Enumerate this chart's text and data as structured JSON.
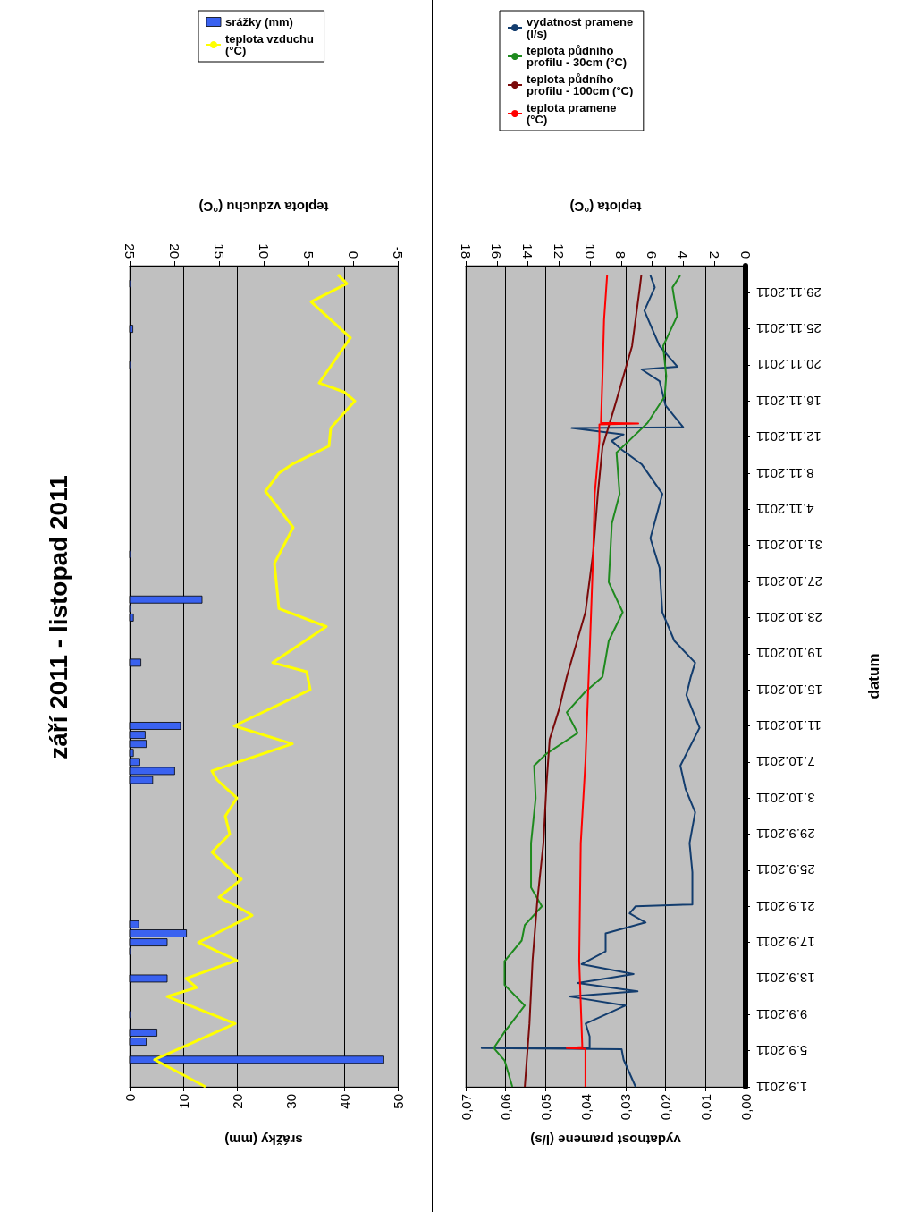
{
  "chart_data": [
    {
      "type": "bar",
      "orientation": "horizontal",
      "title": "září 2011 - listopad 2011",
      "xlabel": "srážky (mm)",
      "x2label": "teplota vzduchu (°C)",
      "ylim": [
        "2011-09-01",
        "2011-12-01"
      ],
      "xlim": [
        0,
        50
      ],
      "xticks": [
        0,
        10,
        20,
        30,
        40,
        50
      ],
      "x2lim": [
        25,
        -5
      ],
      "x2ticks": [
        -5,
        0,
        5,
        10,
        15,
        20,
        25
      ],
      "grid": "x",
      "legend": "top",
      "tick_labels": "x",
      "marker": "none",
      "series": [
        {
          "name": "srážky (mm)",
          "color": "#3a62f0",
          "x": [
            "2011-09-04",
            "2011-09-06",
            "2011-09-07",
            "2011-09-09",
            "2011-09-13",
            "2011-09-16",
            "2011-09-17",
            "2011-09-18",
            "2011-09-19",
            "2011-10-05",
            "2011-10-06",
            "2011-10-07",
            "2011-10-08",
            "2011-10-09",
            "2011-10-10",
            "2011-10-11",
            "2011-10-18",
            "2011-10-23",
            "2011-10-24",
            "2011-10-25",
            "2011-10-30",
            "2011-11-20",
            "2011-11-24",
            "2011-11-29"
          ],
          "values": [
            47.4,
            3.1,
            5.1,
            0.2,
            7.0,
            0.2,
            7.0,
            10.6,
            1.7,
            4.3,
            8.4,
            1.9,
            0.7,
            3.1,
            2.9,
            9.5,
            2.1,
            0.7,
            0.2,
            13.5,
            0.2,
            0.2,
            0.6,
            0.2
          ]
        },
        {
          "name": "teplota vzduchu (°C)",
          "type": "line",
          "axis": "x2",
          "color": "#ffff00",
          "x": [
            "2011-09-01",
            "2011-09-04",
            "2011-09-08",
            "2011-09-11",
            "2011-09-12",
            "2011-09-13",
            "2011-09-15",
            "2011-09-17",
            "2011-09-20",
            "2011-09-21",
            "2011-09-22",
            "2011-09-24",
            "2011-09-27",
            "2011-09-29",
            "2011-10-01",
            "2011-10-03",
            "2011-10-05",
            "2011-10-06",
            "2011-10-09",
            "2011-10-11",
            "2011-10-15",
            "2011-10-17",
            "2011-10-18",
            "2011-10-22",
            "2011-10-24",
            "2011-10-29",
            "2011-11-02",
            "2011-11-06",
            "2011-11-08",
            "2011-11-09",
            "2011-11-11",
            "2011-11-13",
            "2011-11-16",
            "2011-11-17",
            "2011-11-18",
            "2011-11-23",
            "2011-11-27",
            "2011-11-29",
            "2011-11-30"
          ],
          "values": [
            16.5,
            22.2,
            13.2,
            20.8,
            17.5,
            18.7,
            13.0,
            17.3,
            11.3,
            13.0,
            15.0,
            12.5,
            15.8,
            13.8,
            14.3,
            13.0,
            15.2,
            15.8,
            6.8,
            13.3,
            4.8,
            5.2,
            9.0,
            3.0,
            8.3,
            8.8,
            6.7,
            9.8,
            8.3,
            6.8,
            2.7,
            2.5,
            -0.2,
            1.0,
            3.8,
            0.3,
            4.7,
            0.7,
            1.7
          ]
        }
      ]
    },
    {
      "type": "line",
      "orientation": "horizontal",
      "ylabel": "datum",
      "xlabel": "vydatnost pramene (l/s)",
      "x2label": "teplota (°C)",
      "ylim": [
        "2011-09-01",
        "2011-12-01"
      ],
      "yticks": [
        {
          "value": "2011-09-01",
          "label": "1.9.2011"
        },
        {
          "value": "2011-09-05",
          "label": "5.9.2011"
        },
        {
          "value": "2011-09-09",
          "label": "9.9.2011"
        },
        {
          "value": "2011-09-13",
          "label": "13.9.2011"
        },
        {
          "value": "2011-09-17",
          "label": "17.9.2011"
        },
        {
          "value": "2011-09-21",
          "label": "21.9.2011"
        },
        {
          "value": "2011-09-25",
          "label": "25.9.2011"
        },
        {
          "value": "2011-09-29",
          "label": "29.9.2011"
        },
        {
          "value": "2011-10-03",
          "label": "3.10.2011"
        },
        {
          "value": "2011-10-07",
          "label": "7.10.2011"
        },
        {
          "value": "2011-10-11",
          "label": "11.10.2011"
        },
        {
          "value": "2011-10-15",
          "label": "15.10.2011"
        },
        {
          "value": "2011-10-19",
          "label": "19.10.2011"
        },
        {
          "value": "2011-10-23",
          "label": "23.10.2011"
        },
        {
          "value": "2011-10-27",
          "label": "27.10.2011"
        },
        {
          "value": "2011-10-31",
          "label": "31.10.2011"
        },
        {
          "value": "2011-11-04",
          "label": "4.11.2011"
        },
        {
          "value": "2011-11-08",
          "label": "8.11.2011"
        },
        {
          "value": "2011-11-12",
          "label": "12.11.2011"
        },
        {
          "value": "2011-11-16",
          "label": "16.11.2011"
        },
        {
          "value": "2011-11-20",
          "label": "20.11.2011"
        },
        {
          "value": "2011-11-24",
          "label": "25.11.2011"
        },
        {
          "value": "2011-11-28",
          "label": "29.11.2011"
        }
      ],
      "xlim": [
        0.07,
        0
      ],
      "xticks": [
        {
          "value": 0,
          "label": "0,00"
        },
        {
          "value": 0.01,
          "label": "0,01"
        },
        {
          "value": 0.02,
          "label": "0,02"
        },
        {
          "value": 0.03,
          "label": "0,03"
        },
        {
          "value": 0.04,
          "label": "0,04"
        },
        {
          "value": 0.05,
          "label": "0,05"
        },
        {
          "value": 0.06,
          "label": "0,06"
        },
        {
          "value": 0.07,
          "label": "0,07"
        }
      ],
      "x2lim": [
        18,
        0
      ],
      "x2ticks": [
        0,
        2,
        4,
        6,
        8,
        10,
        12,
        14,
        16,
        18
      ],
      "grid": "x",
      "legend": "top",
      "marker": "none",
      "series": [
        {
          "name": "vydatnost pramene (l/s)",
          "color": "#133d6e",
          "x": [
            "2011-09-01",
            "2011-09-04",
            "2011-09-05T04:00",
            "2011-09-05T07:00",
            "2011-09-05T08:00",
            "2011-09-06T14:00",
            "2011-09-08",
            "2011-09-10",
            "2011-09-11",
            "2011-09-11T14:00",
            "2011-09-12T12:00",
            "2011-09-13T12:00",
            "2011-09-14T14:00",
            "2011-09-16",
            "2011-09-18",
            "2011-09-19T05:00",
            "2011-09-20T05:00",
            "2011-09-21",
            "2011-09-21T05:00",
            "2011-09-24T19:00",
            "2011-09-28",
            "2011-10-01T10:00",
            "2011-10-04",
            "2011-10-06T14:00",
            "2011-10-10T19:00",
            "2011-10-14T10:00",
            "2011-10-16T10:00",
            "2011-10-18",
            "2011-10-20T10:00",
            "2011-10-23T14:00",
            "2011-10-28T12:00",
            "2011-10-31T19:00",
            "2011-11-05T17:00",
            "2011-11-09",
            "2011-11-10T14:00",
            "2011-11-11T14:00",
            "2011-11-12T07:00",
            "2011-11-13",
            "2011-11-13T02:00",
            "2011-11-15T12:00",
            "2011-11-18T05:00",
            "2011-11-19T12:00",
            "2011-11-19T19:00",
            "2011-11-22T02:00",
            "2011-11-26",
            "2011-11-28T14:00",
            "2011-11-29T22:00"
          ],
          "values": [
            0.0275,
            0.0305,
            0.031,
            0.066,
            0.039,
            0.039,
            0.04,
            0.03,
            0.044,
            0.027,
            0.042,
            0.028,
            0.041,
            0.035,
            0.035,
            0.025,
            0.029,
            0.0275,
            0.0133,
            0.0133,
            0.014,
            0.0126,
            0.015,
            0.0163,
            0.0115,
            0.0148,
            0.0137,
            0.0126,
            0.0178,
            0.0208,
            0.0215,
            0.0238,
            0.0208,
            0.026,
            0.0309,
            0.0335,
            0.0305,
            0.0435,
            0.0156,
            0.02,
            0.0215,
            0.026,
            0.017,
            0.0215,
            0.0253,
            0.0227,
            0.0238
          ]
        },
        {
          "name": "teplota půdního profilu - 30cm (°C)",
          "axis": "x2",
          "color": "#1e8a1e",
          "x": [
            "2011-09-01",
            "2011-09-03T22:00",
            "2011-09-05T07:00",
            "2011-09-07T02:00",
            "2011-09-10",
            "2011-09-12T07:00",
            "2011-09-14T22:00",
            "2011-09-17T05:00",
            "2011-09-18T22:00",
            "2011-09-21",
            "2011-09-23T02:00",
            "2011-09-28",
            "2011-10-03",
            "2011-10-06T14:00",
            "2011-10-07T22:00",
            "2011-10-10T05:00",
            "2011-10-12T12:00",
            "2011-10-14T19:00",
            "2011-10-16T10:00",
            "2011-10-20T10:00",
            "2011-10-23T14:00",
            "2011-10-26T22:00",
            "2011-11-02T10:00",
            "2011-11-05T17:00",
            "2011-11-10T07:00",
            "2011-11-11T14:00",
            "2011-11-13T14:00",
            "2011-11-16T12:00",
            "2011-11-18T19:00",
            "2011-11-22T02:00",
            "2011-11-25T10:00",
            "2011-11-28T14:00",
            "2011-11-29T22:00"
          ],
          "values": [
            15.0,
            15.5,
            16.2,
            15.5,
            14.2,
            15.5,
            15.5,
            14.4,
            14.2,
            13.1,
            13.8,
            13.8,
            13.5,
            13.6,
            12.8,
            10.8,
            11.5,
            10.3,
            9.2,
            8.8,
            7.9,
            8.8,
            8.6,
            8.1,
            8.3,
            7.5,
            6.3,
            5.2,
            5.1,
            5.3,
            4.4,
            4.7,
            4.2
          ]
        },
        {
          "name": "teplota půdního profilu - 100cm (°C)",
          "axis": "x2",
          "color": "#7a0a0a",
          "x": [
            "2011-09-01",
            "2011-09-08",
            "2011-09-15",
            "2011-09-21T12:00",
            "2011-09-28",
            "2011-10-04T14:00",
            "2011-10-09T12:00",
            "2011-10-12T19:00",
            "2011-10-16T10:00",
            "2011-10-23T14:00",
            "2011-10-30T05:00",
            "2011-11-05T17:00",
            "2011-11-10T22:00",
            "2011-11-15T12:00",
            "2011-11-22T02:00",
            "2011-11-28T14:00",
            "2011-11-30"
          ],
          "values": [
            14.2,
            13.9,
            13.7,
            13.4,
            13.0,
            12.8,
            12.6,
            12.0,
            11.5,
            10.3,
            9.8,
            9.5,
            9.2,
            8.4,
            7.3,
            6.8,
            6.7
          ]
        },
        {
          "name": "teplota pramene (°C)",
          "axis": "x2",
          "color": "#ff0000",
          "x": [
            "2011-09-01",
            "2011-09-05T05:00",
            "2011-09-05T07:00",
            "2011-09-05T10:00",
            "2011-09-15",
            "2011-09-28",
            "2011-10-07",
            "2011-10-16",
            "2011-10-20T10:00",
            "2011-10-30",
            "2011-11-05T17:00",
            "2011-11-11T14:00",
            "2011-11-13T10:00",
            "2011-11-13T12:00",
            "2011-11-13T14:00",
            "2011-11-18T19:00",
            "2011-11-25",
            "2011-11-30"
          ],
          "values": [
            10.3,
            10.3,
            11.5,
            10.5,
            10.7,
            10.6,
            10.3,
            10.1,
            10.0,
            9.8,
            9.7,
            9.4,
            9.4,
            6.9,
            9.3,
            9.2,
            9.1,
            8.9
          ]
        }
      ]
    }
  ]
}
